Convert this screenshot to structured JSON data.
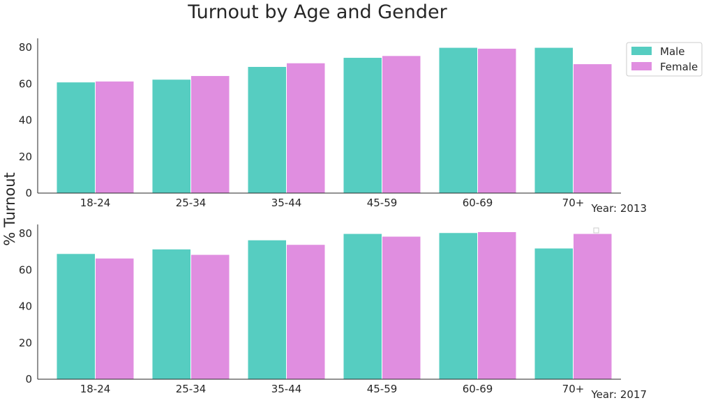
{
  "title": "Turnout by Age and Gender",
  "ylabel": "% Turnout",
  "colors": {
    "male": "#56cdc1",
    "female": "#e08ee0"
  },
  "legend": {
    "items": [
      "Male",
      "Female"
    ],
    "placement": "top-right-outside"
  },
  "chart_data": [
    {
      "type": "bar",
      "year_label": "Year: 2013",
      "categories": [
        "18-24",
        "25-34",
        "35-44",
        "45-59",
        "60-69",
        "70+"
      ],
      "series": [
        {
          "name": "Male",
          "values": [
            61,
            62.5,
            69.5,
            74.5,
            80,
            80
          ]
        },
        {
          "name": "Female",
          "values": [
            61.5,
            64.5,
            71.5,
            75.5,
            79.5,
            71
          ]
        }
      ],
      "ylim": [
        0,
        85
      ],
      "yticks": [
        "0",
        "20",
        "40",
        "60",
        "80"
      ],
      "grid": false
    },
    {
      "type": "bar",
      "year_label": "Year: 2017",
      "categories": [
        "18-24",
        "25-34",
        "35-44",
        "45-59",
        "60-69",
        "70+"
      ],
      "series": [
        {
          "name": "Male",
          "values": [
            69,
            71.5,
            76.5,
            80,
            80.5,
            72
          ]
        },
        {
          "name": "Female",
          "values": [
            66.5,
            68.5,
            74,
            78.5,
            81,
            80
          ]
        }
      ],
      "ylim": [
        0,
        85
      ],
      "yticks": [
        "0",
        "20",
        "40",
        "60",
        "80"
      ],
      "grid": false
    }
  ]
}
